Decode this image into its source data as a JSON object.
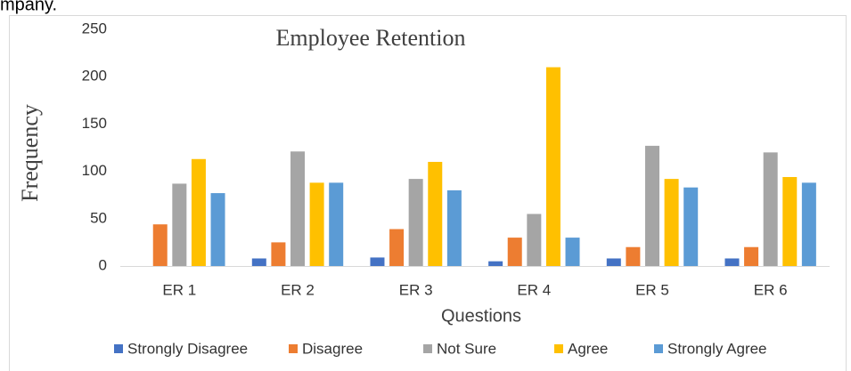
{
  "chart_data": {
    "type": "bar",
    "annotations": [
      "mpany."
    ],
    "title": "Employee Retention",
    "x_label": "Questions",
    "y_label": "Frequency",
    "categories": [
      "ER 1",
      "ER 2",
      "ER 3",
      "ER 4",
      "ER 5",
      "ER 6"
    ],
    "series": [
      {
        "name": "Strongly Disagree",
        "color": "#4472c4",
        "values": [
          0,
          8,
          9,
          5,
          8,
          8
        ]
      },
      {
        "name": "Disagree",
        "color": "#ed7d31",
        "values": [
          44,
          25,
          39,
          30,
          20,
          20
        ]
      },
      {
        "name": "Not Sure",
        "color": "#a5a5a5",
        "values": [
          87,
          121,
          92,
          55,
          127,
          120
        ]
      },
      {
        "name": "Agree",
        "color": "#ffc000",
        "values": [
          113,
          88,
          110,
          210,
          92,
          94
        ]
      },
      {
        "name": "Strongly Agree",
        "color": "#5b9bd5",
        "values": [
          77,
          88,
          80,
          30,
          83,
          88
        ]
      }
    ],
    "ylim": [
      0,
      250
    ],
    "yticks": [
      0,
      50,
      100,
      150,
      200,
      250
    ],
    "grid": false,
    "legend": "bottom"
  }
}
